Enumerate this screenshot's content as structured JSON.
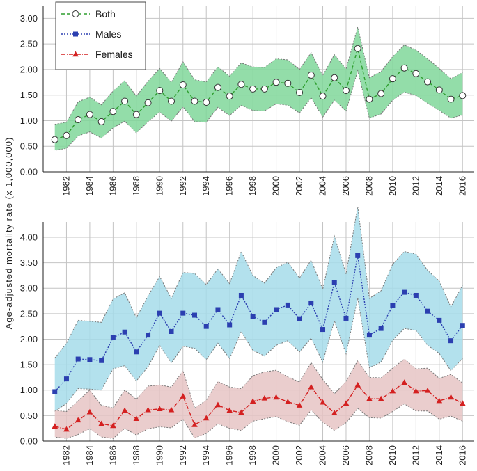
{
  "chart_data": [
    {
      "type": "line",
      "panel": "top",
      "ylabel": "Age-adjusted mortality rate (x 1,000,000)",
      "ylim": [
        0,
        3.25
      ],
      "yticks": [
        "0.00",
        "0.50",
        "1.00",
        "1.50",
        "2.00",
        "2.50",
        "3.00"
      ],
      "x": [
        1981,
        1982,
        1983,
        1984,
        1985,
        1986,
        1987,
        1988,
        1989,
        1990,
        1991,
        1992,
        1993,
        1994,
        1995,
        1996,
        1997,
        1998,
        1999,
        2000,
        2001,
        2002,
        2003,
        2004,
        2005,
        2006,
        2007,
        2008,
        2009,
        2010,
        2011,
        2012,
        2013,
        2014,
        2015,
        2016
      ],
      "xtick_labels": [
        "1982",
        "1984",
        "1986",
        "1988",
        "1990",
        "1992",
        "1994",
        "1996",
        "1998",
        "2000",
        "2002",
        "2004",
        "2006",
        "2008",
        "2010",
        "2012",
        "2014",
        "2016"
      ],
      "grid": true,
      "legend": [
        "Both",
        "Males",
        "Females"
      ],
      "series": [
        {
          "name": "Both",
          "color": "#2e9e2e",
          "band_color": "#80d79a",
          "values": [
            0.63,
            0.71,
            1.02,
            1.12,
            0.98,
            1.18,
            1.38,
            1.12,
            1.35,
            1.59,
            1.38,
            1.7,
            1.38,
            1.36,
            1.65,
            1.48,
            1.71,
            1.62,
            1.62,
            1.75,
            1.73,
            1.55,
            1.89,
            1.48,
            1.84,
            1.59,
            2.41,
            1.42,
            1.53,
            1.82,
            2.03,
            1.92,
            1.76,
            1.6,
            1.42,
            1.49
          ],
          "upper": [
            0.93,
            0.97,
            1.37,
            1.46,
            1.31,
            1.58,
            1.78,
            1.48,
            1.77,
            2.02,
            1.75,
            2.15,
            1.8,
            1.76,
            2.05,
            1.87,
            2.13,
            2.05,
            2.04,
            2.21,
            2.19,
            2.0,
            2.33,
            1.88,
            2.29,
            2.01,
            2.83,
            1.84,
            1.96,
            2.25,
            2.48,
            2.38,
            2.21,
            2.02,
            1.82,
            1.94
          ],
          "lower": [
            0.42,
            0.46,
            0.7,
            0.78,
            0.66,
            0.86,
            0.99,
            0.76,
            0.98,
            1.17,
            0.99,
            1.27,
            0.98,
            0.97,
            1.26,
            1.1,
            1.3,
            1.2,
            1.19,
            1.33,
            1.3,
            1.15,
            1.45,
            1.07,
            1.4,
            1.19,
            1.98,
            1.05,
            1.13,
            1.4,
            1.56,
            1.49,
            1.34,
            1.2,
            1.05,
            1.11
          ]
        }
      ]
    },
    {
      "type": "line",
      "panel": "bottom",
      "ylim": [
        0,
        4.3
      ],
      "yticks": [
        "0.00",
        "0.50",
        "1.00",
        "1.50",
        "2.00",
        "2.50",
        "3.00",
        "3.50",
        "4.00"
      ],
      "x": [
        1981,
        1982,
        1983,
        1984,
        1985,
        1986,
        1987,
        1988,
        1989,
        1990,
        1991,
        1992,
        1993,
        1994,
        1995,
        1996,
        1997,
        1998,
        1999,
        2000,
        2001,
        2002,
        2003,
        2004,
        2005,
        2006,
        2007,
        2008,
        2009,
        2010,
        2011,
        2012,
        2013,
        2014,
        2015,
        2016
      ],
      "xtick_labels": [
        "1982",
        "1984",
        "1986",
        "1988",
        "1990",
        "1992",
        "1994",
        "1996",
        "1998",
        "2000",
        "2002",
        "2004",
        "2006",
        "2008",
        "2010",
        "2012",
        "2014",
        "2016"
      ],
      "grid": true,
      "series": [
        {
          "name": "Males",
          "color": "#2b3fb0",
          "band_color": "#a6dcea",
          "values": [
            0.97,
            1.22,
            1.61,
            1.6,
            1.58,
            2.03,
            2.14,
            1.75,
            2.08,
            2.51,
            2.15,
            2.51,
            2.47,
            2.25,
            2.58,
            2.28,
            2.86,
            2.45,
            2.33,
            2.58,
            2.67,
            2.4,
            2.71,
            2.19,
            3.11,
            2.41,
            3.64,
            2.08,
            2.21,
            2.66,
            2.92,
            2.86,
            2.55,
            2.37,
            1.97,
            2.27
          ],
          "upper": [
            1.63,
            1.92,
            2.37,
            2.35,
            2.33,
            2.79,
            2.91,
            2.42,
            2.85,
            3.23,
            2.8,
            3.31,
            3.29,
            3.07,
            3.38,
            3.09,
            3.72,
            3.25,
            3.1,
            3.4,
            3.51,
            3.2,
            3.55,
            2.98,
            4.02,
            3.28,
            4.6,
            2.8,
            2.95,
            3.47,
            3.72,
            3.67,
            3.35,
            3.14,
            2.63,
            3.06
          ],
          "lower": [
            0.58,
            0.74,
            1.03,
            1.02,
            1.0,
            1.42,
            1.48,
            1.18,
            1.46,
            1.88,
            1.53,
            1.86,
            1.82,
            1.6,
            1.92,
            1.62,
            2.15,
            1.78,
            1.67,
            1.88,
            1.97,
            1.75,
            2.02,
            1.55,
            2.36,
            1.71,
            2.81,
            1.44,
            1.55,
            1.98,
            2.21,
            2.17,
            1.88,
            1.72,
            1.38,
            1.62
          ]
        },
        {
          "name": "Females",
          "color": "#d42020",
          "band_color": "#e6c4c4",
          "values": [
            0.29,
            0.23,
            0.41,
            0.57,
            0.34,
            0.3,
            0.6,
            0.44,
            0.61,
            0.63,
            0.61,
            0.88,
            0.32,
            0.45,
            0.71,
            0.6,
            0.56,
            0.78,
            0.84,
            0.86,
            0.77,
            0.7,
            1.06,
            0.76,
            0.55,
            0.74,
            1.1,
            0.83,
            0.83,
            0.98,
            1.15,
            0.98,
            0.99,
            0.79,
            0.86,
            0.74
          ],
          "upper": [
            0.6,
            0.58,
            0.79,
            1.0,
            0.7,
            0.65,
            1.0,
            0.82,
            1.08,
            1.1,
            1.06,
            1.38,
            0.65,
            0.8,
            1.17,
            1.06,
            1.03,
            1.28,
            1.36,
            1.39,
            1.26,
            1.16,
            1.54,
            1.21,
            0.93,
            1.17,
            1.58,
            1.25,
            1.24,
            1.43,
            1.61,
            1.42,
            1.43,
            1.23,
            1.31,
            1.14
          ],
          "lower": [
            0.08,
            0.05,
            0.13,
            0.24,
            0.08,
            0.05,
            0.25,
            0.12,
            0.24,
            0.28,
            0.26,
            0.43,
            0.06,
            0.15,
            0.34,
            0.25,
            0.21,
            0.39,
            0.44,
            0.48,
            0.38,
            0.31,
            0.61,
            0.37,
            0.21,
            0.36,
            0.64,
            0.46,
            0.45,
            0.58,
            0.73,
            0.59,
            0.59,
            0.43,
            0.49,
            0.39
          ]
        }
      ]
    }
  ]
}
